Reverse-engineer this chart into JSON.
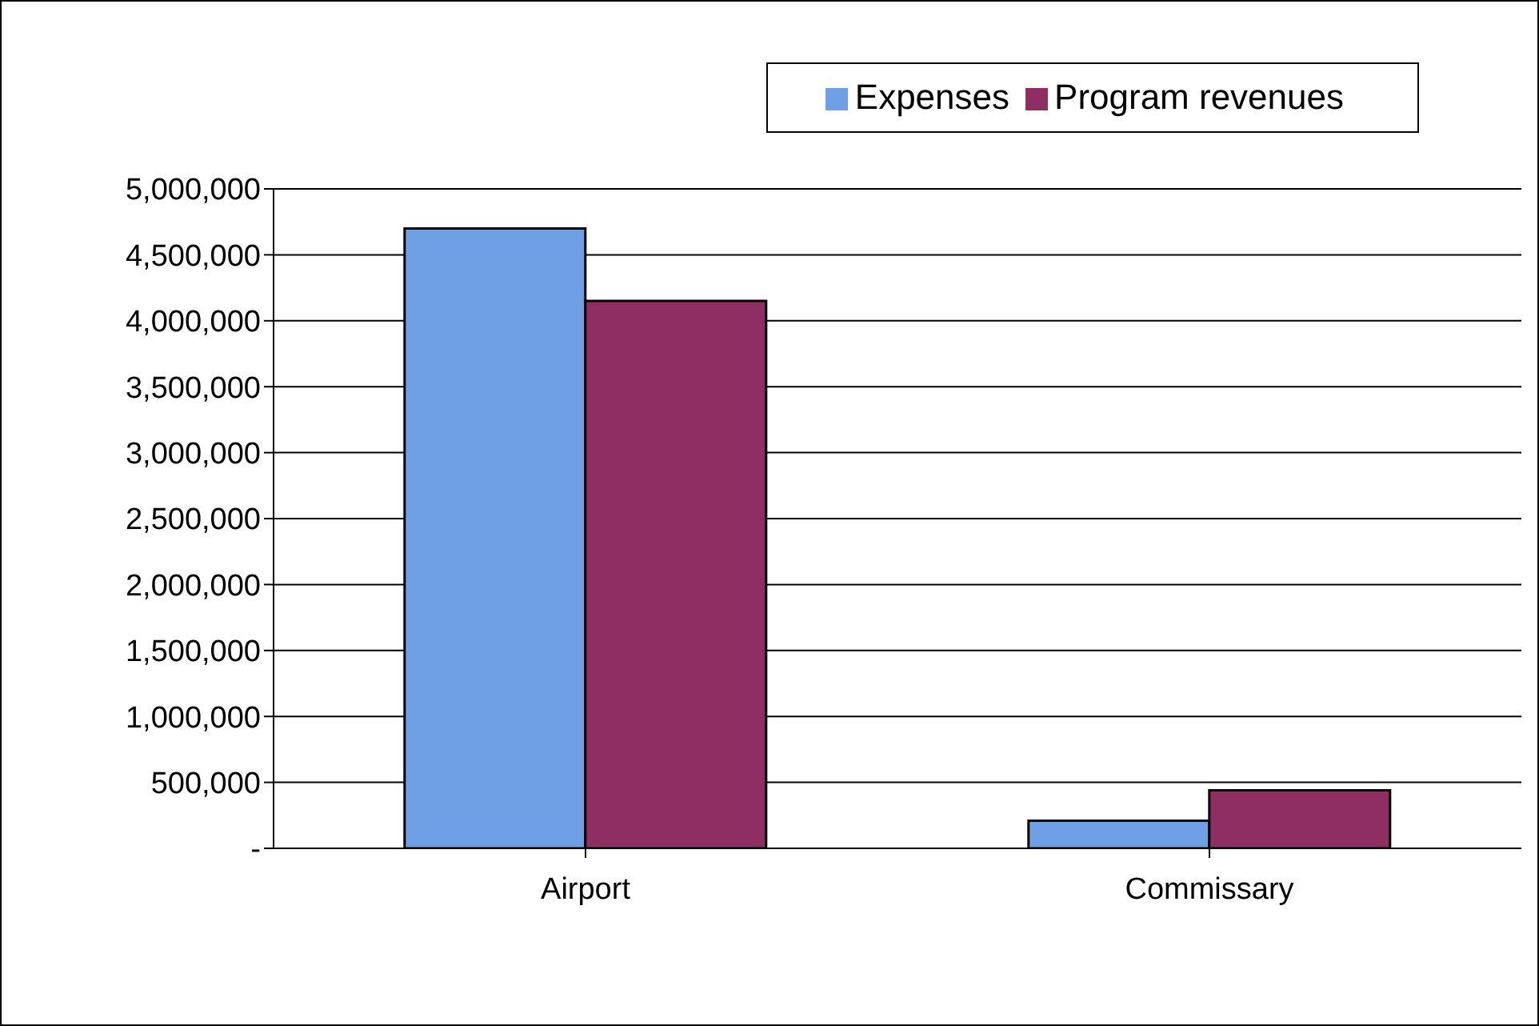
{
  "chart_data": {
    "type": "bar",
    "categories": [
      "Airport",
      "Commissary"
    ],
    "series": [
      {
        "name": "Expenses",
        "color": "#6fa0e6",
        "values": [
          4700000,
          210000
        ]
      },
      {
        "name": "Program revenues",
        "color": "#8e2e62",
        "values": [
          4150000,
          440000
        ]
      }
    ],
    "ylim": [
      0,
      5000000
    ],
    "yticks": [
      {
        "value": 0,
        "label": "-"
      },
      {
        "value": 500000,
        "label": "500,000"
      },
      {
        "value": 1000000,
        "label": "1,000,000"
      },
      {
        "value": 1500000,
        "label": "1,500,000"
      },
      {
        "value": 2000000,
        "label": "2,000,000"
      },
      {
        "value": 2500000,
        "label": "2,500,000"
      },
      {
        "value": 3000000,
        "label": "3,000,000"
      },
      {
        "value": 3500000,
        "label": "3,500,000"
      },
      {
        "value": 4000000,
        "label": "4,000,000"
      },
      {
        "value": 4500000,
        "label": "4,500,000"
      },
      {
        "value": 5000000,
        "label": "5,000,000"
      }
    ],
    "grid": "y",
    "legend": "top right"
  }
}
